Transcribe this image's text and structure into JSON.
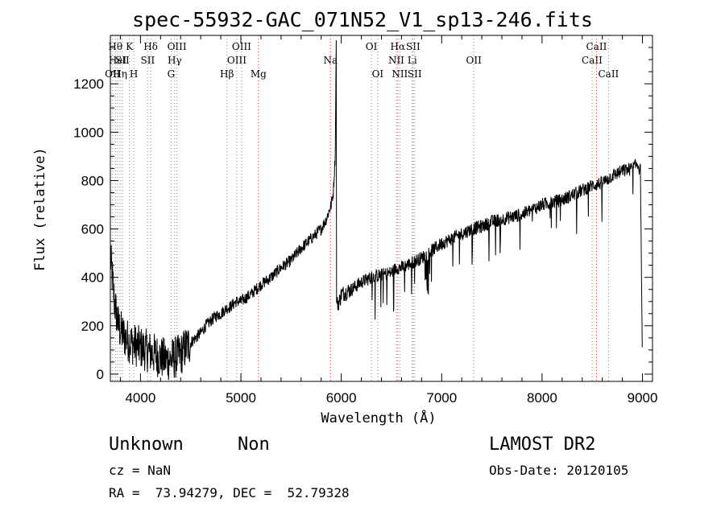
{
  "chart_data": {
    "type": "line",
    "title": "spec-55932-GAC_071N52_V1_sp13-246.fits",
    "xlabel": "Wavelength (Å)",
    "ylabel": "Flux (relative)",
    "xlim": [
      3700,
      9100
    ],
    "ylim": [
      -30,
      1400
    ],
    "xticks": [
      4000,
      5000,
      6000,
      7000,
      8000,
      9000
    ],
    "yticks": [
      0,
      200,
      400,
      600,
      800,
      1000,
      1200
    ],
    "grid": false,
    "series": [
      {
        "x": [
          3700,
          3720,
          3740,
          3760,
          3780,
          3800,
          3850,
          3900,
          3950,
          4000,
          4050,
          4100,
          4150,
          4200,
          4250,
          4300,
          4350,
          4400,
          4450,
          4500,
          4550,
          4600,
          4650,
          4700,
          4750,
          4800,
          4850,
          4900,
          4950,
          5000,
          5100,
          5200,
          5300,
          5400,
          5500,
          5600,
          5700,
          5800,
          5850,
          5900,
          5920,
          5940,
          5950,
          5952,
          5960,
          5980,
          6000,
          6050,
          6100,
          6200,
          6300,
          6400,
          6500,
          6550,
          6600,
          6650,
          6700,
          6750,
          6800,
          6900,
          7000,
          7100,
          7200,
          7300,
          7400,
          7500,
          7600,
          7700,
          7800,
          7900,
          8000,
          8100,
          8200,
          8300,
          8400,
          8500,
          8600,
          8700,
          8800,
          8900,
          8950,
          8980,
          9000
        ],
        "y": [
          480,
          400,
          300,
          250,
          200,
          180,
          150,
          130,
          120,
          110,
          100,
          90,
          80,
          70,
          60,
          60,
          70,
          80,
          110,
          130,
          150,
          170,
          200,
          220,
          240,
          250,
          270,
          280,
          300,
          300,
          330,
          370,
          400,
          440,
          470,
          520,
          560,
          600,
          640,
          700,
          750,
          900,
          1380,
          300,
          290,
          300,
          330,
          340,
          350,
          380,
          400,
          410,
          420,
          440,
          440,
          450,
          460,
          470,
          480,
          510,
          540,
          560,
          580,
          600,
          610,
          630,
          640,
          650,
          660,
          680,
          700,
          710,
          720,
          740,
          760,
          780,
          790,
          820,
          840,
          850,
          870,
          840,
          30
        ]
      }
    ]
  },
  "lines": [
    {
      "x": 3722,
      "label": "OII",
      "row": 2,
      "color": "#888888"
    },
    {
      "x": 3750,
      "label": "Hθ",
      "row": 0,
      "color": "#888888"
    },
    {
      "x": 3772,
      "label": "HeI",
      "row": 1,
      "color": "#888888"
    },
    {
      "x": 3797,
      "label": "Hη",
      "row": 2,
      "color": "#888888"
    },
    {
      "x": 3820,
      "label": "SII",
      "row": 1,
      "color": "#888888"
    },
    {
      "x": 3889,
      "label": "K",
      "row": 0,
      "color": "#888888"
    },
    {
      "x": 3934,
      "label": "H",
      "row": 2,
      "color": "#888888"
    },
    {
      "x": 4072,
      "label": "SII",
      "row": 1,
      "color": "#888888"
    },
    {
      "x": 4102,
      "label": "Hδ",
      "row": 0,
      "color": "#888888"
    },
    {
      "x": 4305,
      "label": "G",
      "row": 2,
      "color": "#888888"
    },
    {
      "x": 4340,
      "label": "Hγ",
      "row": 1,
      "color": "#888888"
    },
    {
      "x": 4363,
      "label": "OIII",
      "row": 0,
      "color": "#888888"
    },
    {
      "x": 4861,
      "label": "Hβ",
      "row": 2,
      "color": "#888888"
    },
    {
      "x": 4959,
      "label": "OIII",
      "row": 1,
      "color": "#888888"
    },
    {
      "x": 5007,
      "label": "OIII",
      "row": 0,
      "color": "#888888"
    },
    {
      "x": 5175,
      "label": "Mg",
      "row": 2,
      "color": "#cc3333"
    },
    {
      "x": 5893,
      "label": "Na",
      "row": 1,
      "color": "#cc3333"
    },
    {
      "x": 6300,
      "label": "OI",
      "row": 0,
      "color": "#888888"
    },
    {
      "x": 6363,
      "label": "OI",
      "row": 2,
      "color": "#888888"
    },
    {
      "x": 6548,
      "label": "NII",
      "row": 1,
      "color": "#888888"
    },
    {
      "x": 6563,
      "label": "Hα",
      "row": 0,
      "color": "#cc3333"
    },
    {
      "x": 6583,
      "label": "NII",
      "row": 2,
      "color": "#888888"
    },
    {
      "x": 6707,
      "label": "Li",
      "row": 1,
      "color": "#888888"
    },
    {
      "x": 6716,
      "label": "SII",
      "row": 0,
      "color": "#888888"
    },
    {
      "x": 6731,
      "label": "SII",
      "row": 2,
      "color": "#888888"
    },
    {
      "x": 7320,
      "label": "OII",
      "row": 1,
      "color": "#888888"
    },
    {
      "x": 8498,
      "label": "CaII",
      "row": 1,
      "color": "#888888"
    },
    {
      "x": 8542,
      "label": "CaII",
      "row": 0,
      "color": "#cc3333"
    },
    {
      "x": 8662,
      "label": "CaII",
      "row": 2,
      "color": "#888888"
    }
  ],
  "info": {
    "class_label": "Unknown",
    "subclass_label": "Non",
    "survey": "LAMOST DR2",
    "cz": "cz = NaN",
    "obs_date": "Obs-Date: 20120105",
    "coords": "RA =  73.94279, DEC =  52.79328"
  }
}
